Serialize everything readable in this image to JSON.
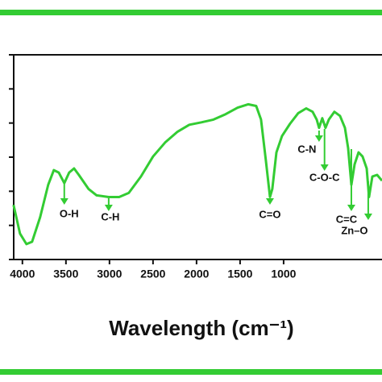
{
  "chart_data": {
    "type": "line",
    "x_label": "Wavelength (cm⁻¹)",
    "xlim": [
      4100,
      -130
    ],
    "ylim": [
      0,
      6
    ],
    "xticks": [
      4000,
      3500,
      3000,
      2500,
      2000,
      1500,
      1000
    ],
    "yticks": [
      0,
      1,
      2,
      3,
      4,
      5,
      6
    ],
    "series": [
      {
        "color": "#33cc33",
        "x": [
          4102,
          4028,
          3954,
          3889,
          3796,
          3704,
          3639,
          3583,
          3519,
          3463,
          3407,
          3352,
          3241,
          3148,
          3009,
          2889,
          2778,
          2639,
          2500,
          2361,
          2222,
          2083,
          1944,
          1806,
          1667,
          1528,
          1407,
          1315,
          1259,
          1204,
          1157,
          1130,
          1083,
          1019,
          926,
          833,
          741,
          667,
          620,
          593,
          556,
          519,
          481,
          417,
          352,
          296,
          259,
          222,
          185,
          139,
          93,
          46,
          19,
          -19,
          -74,
          -130
        ],
        "values": [
          1.6,
          0.76,
          0.45,
          0.52,
          1.24,
          2.19,
          2.62,
          2.55,
          2.24,
          2.55,
          2.67,
          2.48,
          2.07,
          1.88,
          1.83,
          1.83,
          1.95,
          2.43,
          3.02,
          3.43,
          3.74,
          3.95,
          4.02,
          4.1,
          4.26,
          4.45,
          4.55,
          4.5,
          4.1,
          2.9,
          1.83,
          2.07,
          3.14,
          3.62,
          3.98,
          4.29,
          4.43,
          4.33,
          4.1,
          3.86,
          4.14,
          3.86,
          4.1,
          4.33,
          4.21,
          3.86,
          3.26,
          2.19,
          2.79,
          3.14,
          3.02,
          2.67,
          1.83,
          2.43,
          2.48,
          2.31
        ]
      }
    ],
    "annotations": [
      {
        "label": "O-H",
        "x": 3519
      },
      {
        "label": "C-H",
        "x": 3009
      },
      {
        "label": "C=O",
        "x": 1157
      },
      {
        "label": "C-N",
        "x": 593
      },
      {
        "label": "C-O-C",
        "x": 530
      },
      {
        "label": "C=C",
        "x": 222
      },
      {
        "label": "Zn–O",
        "x": 28
      }
    ]
  }
}
